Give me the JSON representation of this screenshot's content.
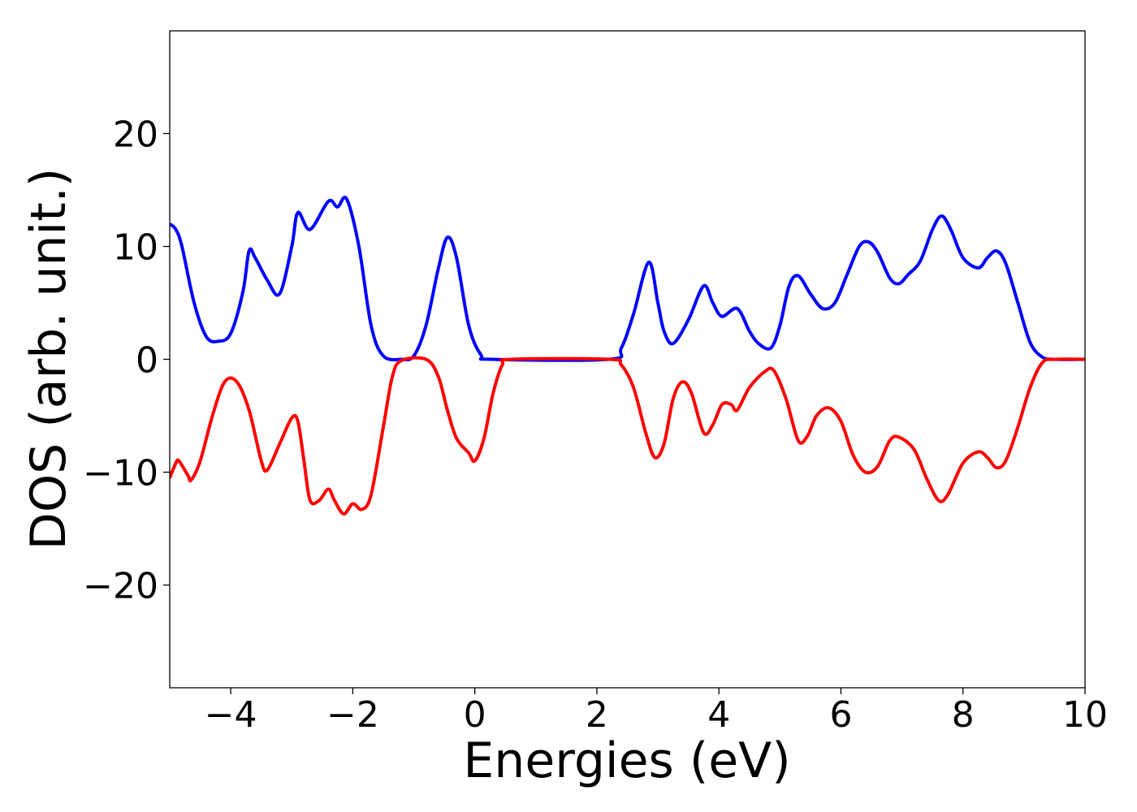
{
  "chart_data": {
    "type": "line",
    "xlabel": "Energies (eV)",
    "ylabel": "DOS (arb. unit.)",
    "xlim": [
      -5,
      10
    ],
    "ylim": [
      -29.1,
      29.1
    ],
    "xticks": [
      {
        "value": -4,
        "label": "−4"
      },
      {
        "value": -2,
        "label": "−2"
      },
      0,
      2,
      4,
      6,
      8,
      10
    ],
    "yticks": [
      {
        "value": -20,
        "label": "−20"
      },
      {
        "value": -10,
        "label": "−10"
      },
      0,
      10,
      20
    ],
    "series": [
      {
        "color": "#0000ff",
        "x": [
          -5,
          -4.9,
          -4.8,
          -4.6,
          -4.4,
          -4.2,
          -4.0,
          -3.8,
          -3.7,
          -3.6,
          -3.4,
          -3.2,
          -3.0,
          -2.9,
          -2.7,
          -2.4,
          -2.25,
          -2.1,
          -1.9,
          -1.7,
          -1.5,
          -1.2,
          -1.0,
          -0.8,
          -0.6,
          -0.45,
          -0.3,
          -0.1,
          0.1,
          0.3,
          2.2,
          2.4,
          2.6,
          2.85,
          3.0,
          3.1,
          3.25,
          3.5,
          3.75,
          3.9,
          4.05,
          4.3,
          4.5,
          4.65,
          4.85,
          5.0,
          5.15,
          5.3,
          5.5,
          5.7,
          5.9,
          6.1,
          6.3,
          6.45,
          6.6,
          6.8,
          6.95,
          7.1,
          7.3,
          7.5,
          7.65,
          7.8,
          8.0,
          8.25,
          8.4,
          8.55,
          8.7,
          8.9,
          9.1,
          9.3,
          9.5,
          10
        ],
        "values": [
          12,
          11.5,
          10,
          5,
          2,
          1.6,
          2.3,
          6,
          9.6,
          9,
          7,
          5.8,
          10,
          13,
          11.5,
          14,
          13.5,
          14.2,
          10,
          3,
          0.3,
          0,
          0.3,
          3,
          8,
          10.8,
          9,
          3,
          0.4,
          0,
          0,
          1,
          4,
          8.6,
          5,
          2.5,
          1.4,
          3.5,
          6.5,
          5,
          3.8,
          4.5,
          2.5,
          1.4,
          1.0,
          3,
          6.5,
          7.4,
          5.8,
          4.5,
          5,
          7.5,
          10,
          10.4,
          9.5,
          7.2,
          6.7,
          7.5,
          8.7,
          11.5,
          12.7,
          11.5,
          9,
          8.1,
          9,
          9.6,
          8.5,
          5,
          1.5,
          0.2,
          0,
          0
        ]
      },
      {
        "color": "#ff0000",
        "x": [
          -5,
          -4.9,
          -4.85,
          -4.7,
          -4.65,
          -4.5,
          -4.3,
          -4.1,
          -3.9,
          -3.7,
          -3.5,
          -3.4,
          -3.2,
          -3.0,
          -2.9,
          -2.8,
          -2.7,
          -2.55,
          -2.4,
          -2.3,
          -2.15,
          -2.0,
          -1.85,
          -1.7,
          -1.5,
          -1.35,
          -1.2,
          -0.8,
          -0.6,
          -0.45,
          -0.3,
          -0.1,
          0.0,
          0.15,
          0.3,
          0.45,
          0.6,
          2.2,
          2.4,
          2.6,
          2.8,
          2.95,
          3.1,
          3.25,
          3.4,
          3.55,
          3.75,
          3.9,
          4.05,
          4.2,
          4.3,
          4.5,
          4.75,
          4.9,
          5.1,
          5.3,
          5.45,
          5.6,
          5.8,
          6.0,
          6.2,
          6.4,
          6.6,
          6.8,
          6.95,
          7.2,
          7.4,
          7.6,
          7.75,
          8.0,
          8.25,
          8.4,
          8.55,
          8.7,
          8.9,
          9.1,
          9.3,
          9.5,
          10
        ],
        "values": [
          -10.5,
          -9.2,
          -9,
          -10.3,
          -10.7,
          -9,
          -5,
          -2,
          -2,
          -4.5,
          -9,
          -9.8,
          -7.5,
          -5.2,
          -5.5,
          -9,
          -12.5,
          -12.5,
          -11.5,
          -12.5,
          -13.7,
          -12.8,
          -13.3,
          -12,
          -6,
          -1.5,
          -0.1,
          0,
          -1.5,
          -4.5,
          -7,
          -8.3,
          -9,
          -7,
          -3,
          -0.5,
          0,
          0,
          -0.5,
          -2.5,
          -6.5,
          -8.7,
          -7.5,
          -3.5,
          -2,
          -3,
          -6.5,
          -5.8,
          -4,
          -4,
          -4.5,
          -2.5,
          -1.1,
          -1.0,
          -3.5,
          -7.2,
          -6.8,
          -5,
          -4.3,
          -5.5,
          -8.5,
          -10,
          -9.5,
          -7.2,
          -6.9,
          -8,
          -10.5,
          -12.5,
          -12,
          -9.2,
          -8.2,
          -8.7,
          -9.6,
          -9,
          -6,
          -2.5,
          -0.3,
          0,
          0
        ]
      }
    ]
  }
}
